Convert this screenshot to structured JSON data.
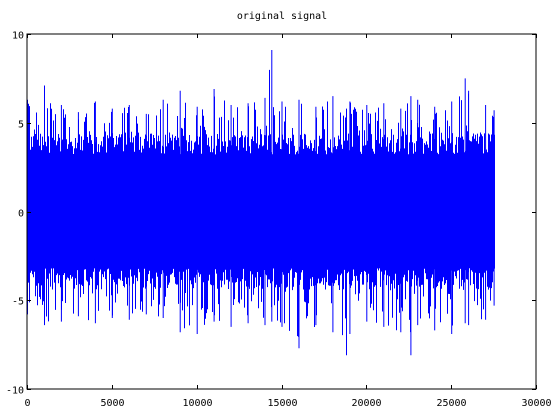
{
  "chart_data": {
    "type": "line",
    "title": "original signal",
    "xlabel": "",
    "ylabel": "",
    "xlim": [
      0,
      30000
    ],
    "ylim": [
      -10,
      10
    ],
    "xticks": [
      0,
      5000,
      10000,
      15000,
      20000,
      25000,
      30000
    ],
    "yticks": [
      -10,
      -5,
      0,
      5,
      10
    ],
    "grid": false,
    "series": [
      {
        "color": "#0000ff",
        "n_samples": 27500,
        "envelope": {
          "x": [
            0,
            1000,
            2000,
            3000,
            4000,
            5000,
            6000,
            7000,
            8000,
            9000,
            10000,
            11000,
            12000,
            13000,
            14000,
            14400,
            15000,
            16000,
            17000,
            18000,
            18800,
            19000,
            20000,
            21000,
            22000,
            22600,
            23000,
            24000,
            25000,
            25800,
            26000,
            27000,
            27500
          ],
          "max": [
            6.3,
            7.1,
            6.0,
            5.6,
            6.2,
            5.8,
            6.0,
            5.5,
            6.3,
            6.8,
            5.9,
            6.9,
            6.0,
            6.1,
            6.4,
            9.1,
            6.2,
            6.3,
            5.9,
            6.5,
            5.8,
            6.2,
            6.0,
            6.1,
            5.8,
            6.5,
            6.3,
            5.9,
            6.2,
            7.5,
            6.8,
            6.0,
            5.7
          ],
          "min": [
            -5.8,
            -6.4,
            -6.2,
            -5.9,
            -6.3,
            -6.0,
            -6.1,
            -5.8,
            -6.0,
            -6.8,
            -6.9,
            -6.2,
            -6.5,
            -6.3,
            -6.4,
            -6.2,
            -6.5,
            -7.7,
            -6.4,
            -6.8,
            -8.1,
            -6.9,
            -6.2,
            -6.5,
            -6.8,
            -8.1,
            -6.4,
            -6.7,
            -6.9,
            -6.3,
            -6.4,
            -6.1,
            -5.3
          ]
        }
      }
    ]
  }
}
